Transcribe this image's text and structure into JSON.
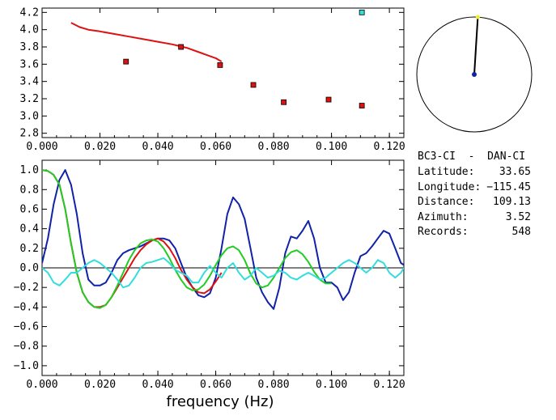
{
  "chart_data": [
    {
      "type": "scatter",
      "xlim": [
        0.0,
        0.125
      ],
      "ylim": [
        2.75,
        4.25
      ],
      "x_ticks": [
        "0.000",
        "0.020",
        "0.040",
        "0.060",
        "0.080",
        "0.100",
        "0.120"
      ],
      "x_tick_values": [
        0.0,
        0.02,
        0.04,
        0.06,
        0.08,
        0.1,
        0.12
      ],
      "y_ticks": [
        "2.8",
        "3.0",
        "3.2",
        "3.4",
        "3.6",
        "3.8",
        "4.0",
        "4.2"
      ],
      "y_tick_values": [
        2.8,
        3.0,
        3.2,
        3.4,
        3.6,
        3.8,
        4.0,
        4.2
      ],
      "grid": false,
      "series": [
        {
          "kind": "line",
          "color": "#dd1111",
          "x": [
            0.01,
            0.013,
            0.016,
            0.02,
            0.025,
            0.03,
            0.035,
            0.04,
            0.045,
            0.05,
            0.055,
            0.06,
            0.062
          ],
          "y": [
            4.08,
            4.03,
            4.0,
            3.98,
            3.95,
            3.92,
            3.89,
            3.86,
            3.83,
            3.79,
            3.73,
            3.67,
            3.63
          ]
        },
        {
          "kind": "markers",
          "color": "#dd1111",
          "x": [
            0.029,
            0.048,
            0.0615,
            0.073,
            0.0835,
            0.099,
            0.1105
          ],
          "y": [
            3.63,
            3.8,
            3.59,
            3.36,
            3.16,
            3.19,
            3.12
          ]
        },
        {
          "kind": "markers",
          "color": "#33dddd",
          "x": [
            0.1105
          ],
          "y": [
            4.2
          ]
        }
      ]
    },
    {
      "type": "line",
      "xlim": [
        0.0,
        0.125
      ],
      "ylim": [
        -1.1,
        1.1
      ],
      "x_ticks": [
        "0.000",
        "0.020",
        "0.040",
        "0.060",
        "0.080",
        "0.100",
        "0.120"
      ],
      "x_tick_values": [
        0.0,
        0.02,
        0.04,
        0.06,
        0.08,
        0.1,
        0.12
      ],
      "y_ticks": [
        "1.0",
        "0.8",
        "0.6",
        "0.4",
        "0.2",
        "0.0",
        "−0.2",
        "−0.4",
        "−0.6",
        "−0.8",
        "−1.0"
      ],
      "y_tick_values": [
        1.0,
        0.8,
        0.6,
        0.4,
        0.2,
        0.0,
        -0.2,
        -0.4,
        -0.6,
        -0.8,
        -1.0
      ],
      "xlabel": "frequency (Hz)",
      "grid": false,
      "zero_line": true,
      "series": [
        {
          "color": "#1122aa",
          "x": [
            0.0,
            0.002,
            0.004,
            0.006,
            0.008,
            0.01,
            0.012,
            0.014,
            0.016,
            0.018,
            0.02,
            0.022,
            0.024,
            0.026,
            0.028,
            0.03,
            0.032,
            0.034,
            0.036,
            0.038,
            0.04,
            0.042,
            0.044,
            0.046,
            0.048,
            0.05,
            0.052,
            0.054,
            0.056,
            0.058,
            0.06,
            0.062,
            0.064,
            0.066,
            0.068,
            0.07,
            0.072,
            0.074,
            0.076,
            0.078,
            0.08,
            0.082,
            0.084,
            0.086,
            0.088,
            0.09,
            0.092,
            0.094,
            0.096,
            0.098,
            0.1,
            0.102,
            0.104,
            0.106,
            0.108,
            0.11,
            0.112,
            0.114,
            0.116,
            0.118,
            0.12,
            0.122,
            0.124,
            0.125
          ],
          "y": [
            0.05,
            0.3,
            0.65,
            0.9,
            1.0,
            0.85,
            0.55,
            0.15,
            -0.12,
            -0.18,
            -0.18,
            -0.15,
            -0.05,
            0.08,
            0.15,
            0.18,
            0.2,
            0.22,
            0.25,
            0.28,
            0.3,
            0.3,
            0.28,
            0.2,
            0.05,
            -0.1,
            -0.2,
            -0.28,
            -0.3,
            -0.26,
            -0.1,
            0.2,
            0.55,
            0.72,
            0.65,
            0.5,
            0.2,
            -0.1,
            -0.25,
            -0.35,
            -0.42,
            -0.2,
            0.15,
            0.32,
            0.3,
            0.38,
            0.48,
            0.3,
            0.0,
            -0.15,
            -0.15,
            -0.2,
            -0.33,
            -0.25,
            -0.05,
            0.12,
            0.15,
            0.22,
            0.3,
            0.38,
            0.35,
            0.2,
            0.05,
            0.03
          ]
        },
        {
          "color": "#dd1111",
          "x": [
            0.0,
            0.002,
            0.004,
            0.006,
            0.008,
            0.01,
            0.012,
            0.014,
            0.016,
            0.018,
            0.02,
            0.022,
            0.024,
            0.026,
            0.028,
            0.03,
            0.032,
            0.034,
            0.036,
            0.038,
            0.04,
            0.042,
            0.044,
            0.046,
            0.048,
            0.05,
            0.052,
            0.054,
            0.056,
            0.058,
            0.06,
            0.062
          ],
          "y": [
            1.0,
            0.99,
            0.95,
            0.85,
            0.6,
            0.25,
            -0.05,
            -0.25,
            -0.35,
            -0.4,
            -0.4,
            -0.38,
            -0.3,
            -0.2,
            -0.1,
            0.0,
            0.1,
            0.18,
            0.24,
            0.28,
            0.3,
            0.27,
            0.2,
            0.1,
            -0.02,
            -0.12,
            -0.2,
            -0.25,
            -0.26,
            -0.22,
            -0.14,
            -0.05
          ]
        },
        {
          "color": "#22cc22",
          "x": [
            0.0,
            0.002,
            0.004,
            0.006,
            0.008,
            0.01,
            0.012,
            0.014,
            0.016,
            0.018,
            0.02,
            0.022,
            0.024,
            0.026,
            0.028,
            0.03,
            0.032,
            0.034,
            0.036,
            0.038,
            0.04,
            0.042,
            0.044,
            0.046,
            0.048,
            0.05,
            0.052,
            0.054,
            0.056,
            0.058,
            0.06,
            0.062,
            0.064,
            0.066,
            0.068,
            0.07,
            0.072,
            0.074,
            0.076,
            0.078,
            0.08,
            0.082,
            0.084,
            0.086,
            0.088,
            0.09,
            0.092,
            0.094,
            0.096,
            0.098,
            0.1
          ],
          "y": [
            1.0,
            0.99,
            0.95,
            0.85,
            0.6,
            0.25,
            -0.05,
            -0.25,
            -0.35,
            -0.4,
            -0.41,
            -0.38,
            -0.3,
            -0.18,
            -0.05,
            0.08,
            0.18,
            0.25,
            0.28,
            0.29,
            0.27,
            0.2,
            0.1,
            -0.02,
            -0.12,
            -0.2,
            -0.23,
            -0.22,
            -0.17,
            -0.08,
            0.03,
            0.13,
            0.2,
            0.22,
            0.18,
            0.08,
            -0.06,
            -0.16,
            -0.2,
            -0.18,
            -0.1,
            0.0,
            0.1,
            0.16,
            0.18,
            0.14,
            0.06,
            -0.04,
            -0.12,
            -0.16,
            -0.16
          ]
        },
        {
          "color": "#33dddd",
          "x": [
            0.0,
            0.002,
            0.004,
            0.006,
            0.008,
            0.01,
            0.012,
            0.014,
            0.016,
            0.018,
            0.02,
            0.022,
            0.024,
            0.026,
            0.028,
            0.03,
            0.032,
            0.034,
            0.036,
            0.038,
            0.04,
            0.042,
            0.044,
            0.046,
            0.048,
            0.05,
            0.052,
            0.054,
            0.056,
            0.058,
            0.06,
            0.062,
            0.064,
            0.066,
            0.068,
            0.07,
            0.072,
            0.074,
            0.076,
            0.078,
            0.08,
            0.082,
            0.084,
            0.086,
            0.088,
            0.09,
            0.092,
            0.094,
            0.096,
            0.098,
            0.1,
            0.102,
            0.104,
            0.106,
            0.108,
            0.11,
            0.112,
            0.114,
            0.116,
            0.118,
            0.12,
            0.122,
            0.124,
            0.125
          ],
          "y": [
            0.0,
            -0.05,
            -0.15,
            -0.18,
            -0.12,
            -0.05,
            -0.05,
            0.0,
            0.05,
            0.08,
            0.05,
            0.0,
            -0.05,
            -0.12,
            -0.2,
            -0.18,
            -0.1,
            0.0,
            0.05,
            0.06,
            0.08,
            0.1,
            0.05,
            -0.02,
            -0.05,
            -0.08,
            -0.15,
            -0.15,
            -0.05,
            0.02,
            -0.05,
            -0.1,
            0.0,
            0.05,
            -0.05,
            -0.12,
            -0.08,
            0.0,
            -0.05,
            -0.1,
            -0.08,
            -0.03,
            -0.05,
            -0.1,
            -0.12,
            -0.08,
            -0.05,
            -0.08,
            -0.12,
            -0.1,
            -0.05,
            0.0,
            0.05,
            0.08,
            0.05,
            0.0,
            -0.05,
            0.0,
            0.08,
            0.05,
            -0.05,
            -0.1,
            -0.05,
            0.0
          ]
        }
      ]
    }
  ],
  "azimuth_diagram": {
    "azimuth_deg": 3.52,
    "tip_color": "#eeee22",
    "center_color": "#1122aa"
  },
  "station_info": {
    "title": "BC3-CI  -  DAN-CI",
    "rows": [
      {
        "label": "Latitude:",
        "value": "33.65"
      },
      {
        "label": "Longitude:",
        "value": "−115.45"
      },
      {
        "label": "Distance:",
        "value": "109.13"
      },
      {
        "label": "Azimuth:",
        "value": "3.52"
      },
      {
        "label": "Records:",
        "value": "548"
      }
    ]
  }
}
